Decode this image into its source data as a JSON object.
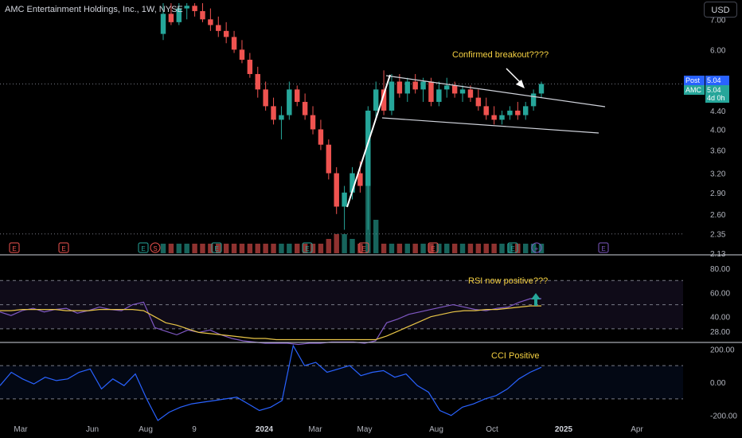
{
  "header": {
    "symbol_title": "AMC Entertainment Holdings, Inc., 1W, NYSE",
    "currency_button": "USD"
  },
  "price_tags": {
    "post_label": "Post",
    "post_value": "5.04",
    "symbol_label": "AMC",
    "symbol_value": "5.04",
    "time_left": "4d 0h"
  },
  "annotations": {
    "breakout": "Confirmed breakout????",
    "rsi": "RSI now positive???",
    "cci": "CCI Positive"
  },
  "colors": {
    "up": "#26a69a",
    "down": "#ef5350",
    "rsi_line": "#7e57c2",
    "rsi_ma": "#e8c547",
    "cci_line": "#2962ff",
    "annotation": "#f5d142"
  },
  "chart_data": [
    {
      "type": "candlestick",
      "title": "AMC Entertainment Holdings, Inc., 1W, NYSE",
      "y_scale": "log",
      "ylim": [
        2.13,
        7.6
      ],
      "y_ticks": [
        "7.00",
        "6.00",
        "5.00",
        "4.40",
        "4.00",
        "3.60",
        "3.20",
        "2.90",
        "2.60",
        "2.35",
        "2.13"
      ],
      "x_ticks": [
        "Mar",
        "Jun",
        "Aug",
        "9",
        "2024",
        "Mar",
        "May",
        "Aug",
        "Oct",
        "2025",
        "Apr"
      ],
      "last_price": 5.04,
      "candles": [
        {
          "o": 6.5,
          "h": 7.6,
          "l": 6.3,
          "c": 7.2
        },
        {
          "o": 7.2,
          "h": 7.6,
          "l": 6.8,
          "c": 6.9
        },
        {
          "o": 6.9,
          "h": 7.6,
          "l": 6.8,
          "c": 7.4
        },
        {
          "o": 7.4,
          "h": 7.6,
          "l": 7.0,
          "c": 7.5
        },
        {
          "o": 7.5,
          "h": 7.6,
          "l": 7.1,
          "c": 7.3
        },
        {
          "o": 7.3,
          "h": 7.6,
          "l": 6.9,
          "c": 7.0
        },
        {
          "o": 7.0,
          "h": 7.4,
          "l": 6.6,
          "c": 6.8
        },
        {
          "o": 6.8,
          "h": 7.1,
          "l": 6.4,
          "c": 6.6
        },
        {
          "o": 6.6,
          "h": 6.9,
          "l": 6.2,
          "c": 6.4
        },
        {
          "o": 6.4,
          "h": 6.6,
          "l": 5.9,
          "c": 6.0
        },
        {
          "o": 6.0,
          "h": 6.3,
          "l": 5.6,
          "c": 5.7
        },
        {
          "o": 5.7,
          "h": 5.9,
          "l": 5.2,
          "c": 5.3
        },
        {
          "o": 5.3,
          "h": 5.5,
          "l": 4.7,
          "c": 4.9
        },
        {
          "o": 4.9,
          "h": 5.1,
          "l": 4.4,
          "c": 4.5
        },
        {
          "o": 4.5,
          "h": 4.7,
          "l": 4.1,
          "c": 4.2
        },
        {
          "o": 4.2,
          "h": 4.5,
          "l": 3.8,
          "c": 4.3
        },
        {
          "o": 4.3,
          "h": 5.1,
          "l": 4.2,
          "c": 4.9
        },
        {
          "o": 4.9,
          "h": 5.0,
          "l": 4.5,
          "c": 4.6
        },
        {
          "o": 4.6,
          "h": 4.8,
          "l": 4.2,
          "c": 4.3
        },
        {
          "o": 4.3,
          "h": 4.5,
          "l": 3.9,
          "c": 4.0
        },
        {
          "o": 4.0,
          "h": 4.2,
          "l": 3.6,
          "c": 3.7
        },
        {
          "o": 3.7,
          "h": 3.8,
          "l": 3.1,
          "c": 3.2
        },
        {
          "o": 3.2,
          "h": 3.3,
          "l": 2.6,
          "c": 2.7
        },
        {
          "o": 2.7,
          "h": 3.0,
          "l": 2.4,
          "c": 2.9
        },
        {
          "o": 2.9,
          "h": 3.3,
          "l": 2.8,
          "c": 3.2
        },
        {
          "o": 3.2,
          "h": 3.4,
          "l": 2.9,
          "c": 3.0
        },
        {
          "o": 3.0,
          "h": 4.5,
          "l": 2.4,
          "c": 4.4
        },
        {
          "o": 4.4,
          "h": 5.1,
          "l": 4.2,
          "c": 4.9
        },
        {
          "o": 4.9,
          "h": 5.4,
          "l": 4.3,
          "c": 4.4
        },
        {
          "o": 4.4,
          "h": 5.3,
          "l": 4.3,
          "c": 5.1
        },
        {
          "o": 5.1,
          "h": 5.3,
          "l": 4.7,
          "c": 4.8
        },
        {
          "o": 4.8,
          "h": 5.2,
          "l": 4.6,
          "c": 5.1
        },
        {
          "o": 5.1,
          "h": 5.3,
          "l": 4.8,
          "c": 4.9
        },
        {
          "o": 4.9,
          "h": 5.2,
          "l": 4.6,
          "c": 5.1
        },
        {
          "o": 5.1,
          "h": 5.2,
          "l": 4.5,
          "c": 4.6
        },
        {
          "o": 4.6,
          "h": 5.1,
          "l": 4.5,
          "c": 4.9
        },
        {
          "o": 4.9,
          "h": 5.2,
          "l": 4.7,
          "c": 5.0
        },
        {
          "o": 5.0,
          "h": 5.1,
          "l": 4.7,
          "c": 4.8
        },
        {
          "o": 4.8,
          "h": 5.0,
          "l": 4.6,
          "c": 4.9
        },
        {
          "o": 4.9,
          "h": 5.0,
          "l": 4.6,
          "c": 4.7
        },
        {
          "o": 4.7,
          "h": 4.9,
          "l": 4.4,
          "c": 4.5
        },
        {
          "o": 4.5,
          "h": 4.7,
          "l": 4.2,
          "c": 4.3
        },
        {
          "o": 4.3,
          "h": 4.5,
          "l": 4.1,
          "c": 4.2
        },
        {
          "o": 4.2,
          "h": 4.4,
          "l": 4.1,
          "c": 4.3
        },
        {
          "o": 4.3,
          "h": 4.5,
          "l": 4.2,
          "c": 4.4
        },
        {
          "o": 4.4,
          "h": 4.6,
          "l": 4.2,
          "c": 4.3
        },
        {
          "o": 4.3,
          "h": 4.6,
          "l": 4.2,
          "c": 4.5
        },
        {
          "o": 4.5,
          "h": 4.9,
          "l": 4.4,
          "c": 4.8
        },
        {
          "o": 4.8,
          "h": 5.1,
          "l": 4.7,
          "c": 5.04
        }
      ],
      "volume_relative": [
        0.1,
        0.1,
        0.1,
        0.1,
        0.1,
        0.1,
        0.1,
        0.1,
        0.1,
        0.1,
        0.1,
        0.1,
        0.1,
        0.1,
        0.1,
        0.1,
        0.1,
        0.1,
        0.1,
        0.1,
        0.1,
        0.15,
        0.2,
        0.2,
        0.15,
        0.1,
        1.0,
        0.35,
        0.1,
        0.1,
        0.1,
        0.1,
        0.1,
        0.1,
        0.1,
        0.1,
        0.1,
        0.1,
        0.1,
        0.1,
        0.1,
        0.1,
        0.1,
        0.1,
        0.1,
        0.1,
        0.1,
        0.1,
        0.1
      ],
      "event_markers": [
        "E",
        "E",
        "E",
        "S",
        "E",
        "E",
        "E",
        "E",
        "E",
        "E"
      ]
    },
    {
      "type": "line",
      "ylim": [
        20,
        90
      ],
      "y_ticks": [
        "80.00",
        "60.00",
        "40.00",
        "28.00"
      ],
      "series": [
        {
          "values": [
            44,
            41,
            45,
            47,
            44,
            46,
            47,
            43,
            45,
            48,
            46,
            45,
            50,
            52,
            31,
            28,
            25,
            29,
            27,
            29,
            25,
            22,
            20,
            19,
            18,
            18,
            18,
            17,
            18,
            18,
            19,
            19,
            19,
            18,
            20,
            35,
            38,
            42,
            44,
            46,
            48,
            50,
            48,
            46,
            45,
            47,
            48,
            52,
            55,
            55
          ]
        },
        {
          "values": [
            45,
            45,
            46,
            46,
            46,
            46,
            45,
            45,
            45,
            46,
            46,
            46,
            46,
            45,
            40,
            35,
            33,
            30,
            27,
            26,
            25,
            24,
            23,
            22,
            22,
            21,
            21,
            21,
            21,
            21,
            21,
            21,
            21,
            21,
            21,
            24,
            28,
            32,
            36,
            40,
            42,
            44,
            45,
            45,
            46,
            46,
            47,
            48,
            49,
            49
          ]
        }
      ]
    },
    {
      "type": "line",
      "ylim": [
        -230,
        230
      ],
      "y_ticks": [
        "200.00",
        "0.00",
        "-200.00"
      ],
      "series": [
        {
          "values": [
            -20,
            60,
            20,
            -10,
            30,
            10,
            20,
            60,
            80,
            -40,
            20,
            -20,
            50,
            -100,
            -230,
            -180,
            -150,
            -130,
            -120,
            -110,
            -100,
            -90,
            -130,
            -170,
            -150,
            -110,
            220,
            100,
            120,
            60,
            80,
            100,
            40,
            60,
            70,
            30,
            50,
            -20,
            -60,
            -170,
            -200,
            -150,
            -130,
            -100,
            -80,
            -40,
            20,
            60,
            90
          ]
        }
      ]
    }
  ]
}
